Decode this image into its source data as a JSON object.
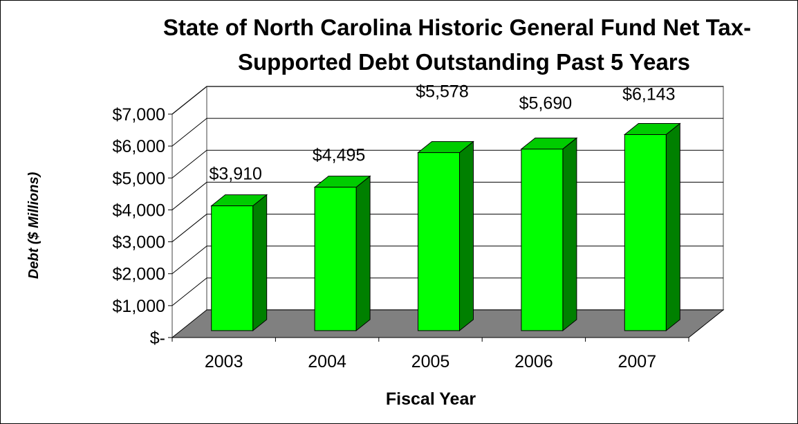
{
  "chart_data": {
    "type": "bar",
    "title_lines": [
      "State of North Carolina Historic General Fund Net Tax-",
      "Supported Debt Outstanding Past 5 Years"
    ],
    "categories": [
      "2003",
      "2004",
      "2005",
      "2006",
      "2007"
    ],
    "values": [
      3910,
      4495,
      5578,
      5690,
      6143
    ],
    "data_labels": [
      "$3,910",
      "$4,495",
      "$5,578",
      "$5,690",
      "$6,143"
    ],
    "xlabel": "Fiscal Year",
    "ylabel": "Debt  ($ Millions)",
    "ylim": [
      0,
      7000
    ],
    "y_ticks": [
      0,
      1000,
      2000,
      3000,
      4000,
      5000,
      6000,
      7000
    ],
    "y_tick_labels": [
      "$-",
      "$1,000",
      "$2,000",
      "$3,000",
      "$4,000",
      "$5,000",
      "$6,000",
      "$7,000"
    ],
    "grid": true,
    "style": "3d",
    "colors": {
      "bar_front": "#00ff00",
      "bar_top": "#00cc00",
      "bar_side": "#008000",
      "floor": "#808080",
      "gridline": "#000000",
      "wall": "#808080"
    }
  }
}
